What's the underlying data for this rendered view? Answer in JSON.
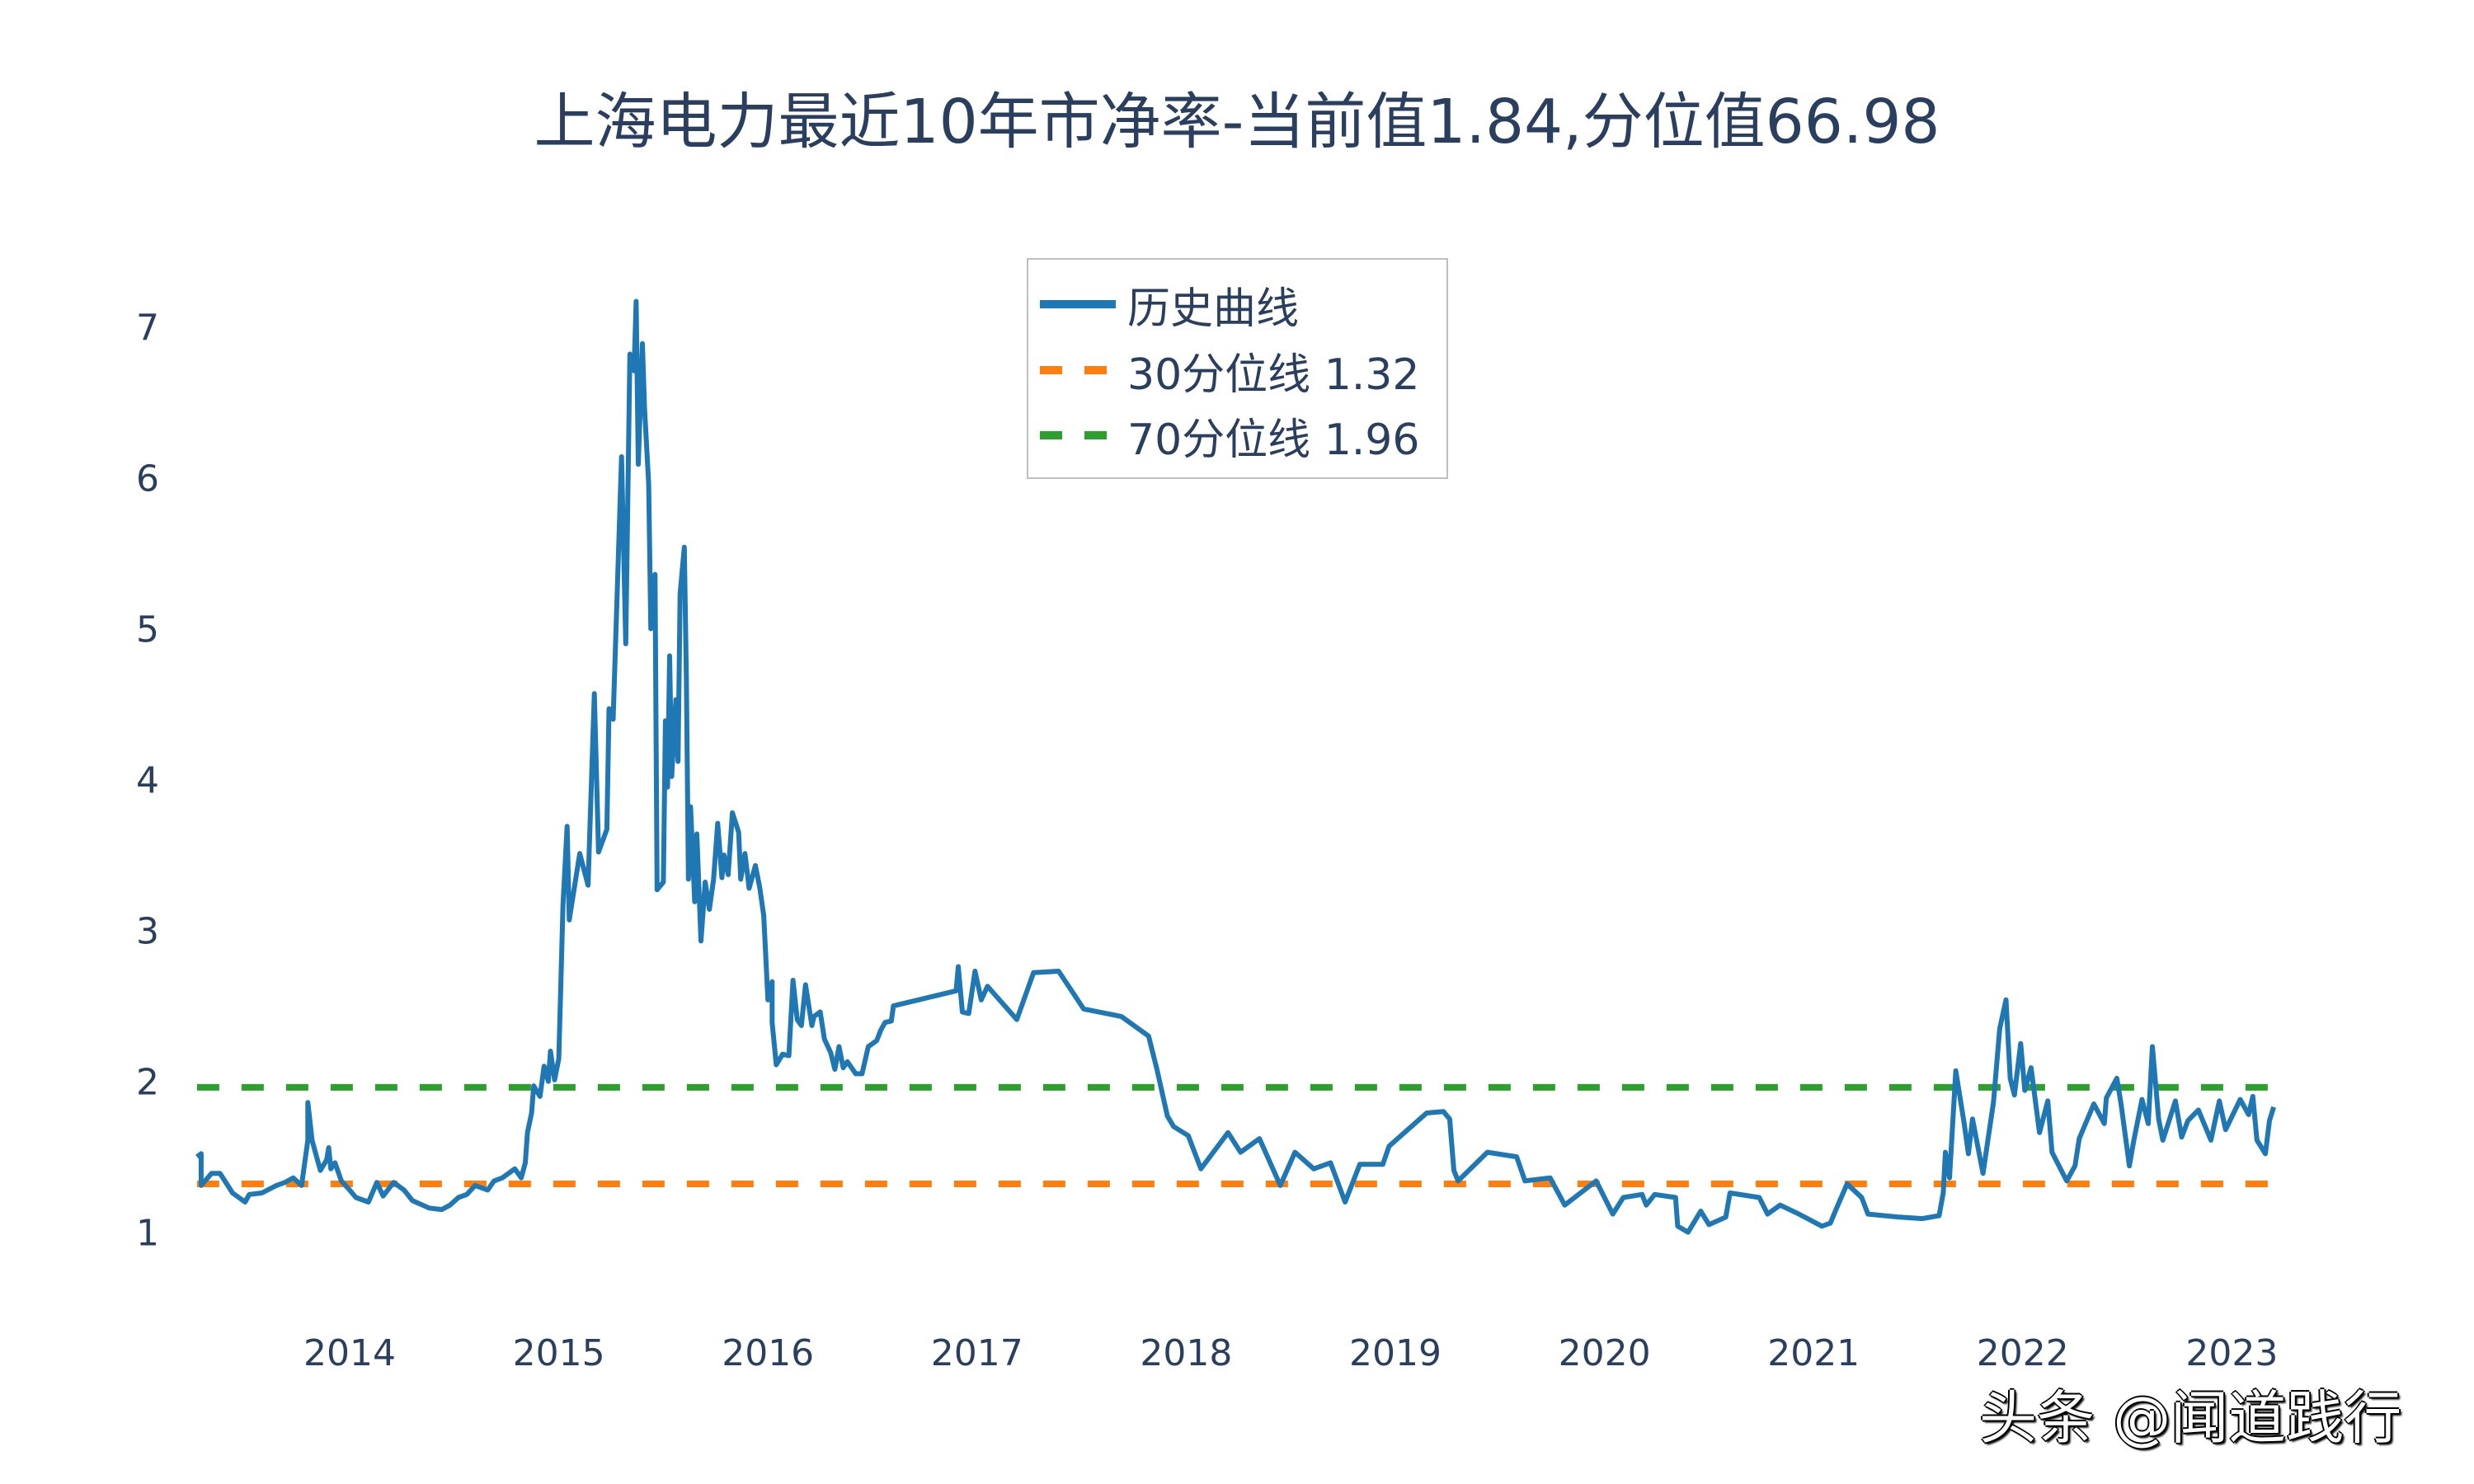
{
  "title": "上海电力最近10年市净率-当前值1.84,分位值66.98",
  "legend": {
    "items": [
      {
        "label": "历史曲线",
        "color": "#1f77b4",
        "dash": "solid"
      },
      {
        "label": "30分位线 1.32",
        "color": "#ff7f0e",
        "dash": "dash"
      },
      {
        "label": "70分位线 1.96",
        "color": "#2ca02c",
        "dash": "dash"
      }
    ]
  },
  "watermark": "头条 @闻道践行",
  "chart_data": {
    "type": "line",
    "title": "上海电力最近10年市净率-当前值1.84,分位值66.98",
    "xlabel": "",
    "ylabel": "",
    "x_ticks": [
      "2014",
      "2015",
      "2016",
      "2017",
      "2018",
      "2019",
      "2020",
      "2021",
      "2022",
      "2023"
    ],
    "y_ticks": [
      1,
      2,
      3,
      4,
      5,
      6,
      7
    ],
    "ylim": [
      0.7,
      7.3
    ],
    "xlim": [
      2013.27,
      2023.34
    ],
    "grid": false,
    "legend_position": "top-center (inside plot)",
    "current_value": 1.84,
    "percentile": 66.98,
    "reference_lines": [
      {
        "name": "30分位线",
        "value": 1.32,
        "color": "#ff7f0e",
        "style": "dash"
      },
      {
        "name": "70分位线",
        "value": 1.96,
        "color": "#2ca02c",
        "style": "dash"
      }
    ],
    "series": [
      {
        "name": "历史曲线",
        "color": "#1f77b4",
        "x_unit": "fractional year",
        "points": [
          [
            2013.27,
            1.5
          ],
          [
            2013.29,
            1.52
          ],
          [
            2013.29,
            1.31
          ],
          [
            2013.34,
            1.39
          ],
          [
            2013.38,
            1.39
          ],
          [
            2013.44,
            1.26
          ],
          [
            2013.47,
            1.23
          ],
          [
            2013.5,
            1.2
          ],
          [
            2013.52,
            1.25
          ],
          [
            2013.58,
            1.26
          ],
          [
            2013.65,
            1.31
          ],
          [
            2013.69,
            1.33
          ],
          [
            2013.73,
            1.36
          ],
          [
            2013.77,
            1.31
          ],
          [
            2013.8,
            1.61
          ],
          [
            2013.8,
            1.86
          ],
          [
            2013.82,
            1.61
          ],
          [
            2013.84,
            1.51
          ],
          [
            2013.86,
            1.41
          ],
          [
            2013.89,
            1.48
          ],
          [
            2013.9,
            1.56
          ],
          [
            2013.91,
            1.42
          ],
          [
            2013.93,
            1.46
          ],
          [
            2013.96,
            1.34
          ],
          [
            2014.0,
            1.28
          ],
          [
            2014.03,
            1.23
          ],
          [
            2014.09,
            1.2
          ],
          [
            2014.13,
            1.33
          ],
          [
            2014.16,
            1.24
          ],
          [
            2014.21,
            1.33
          ],
          [
            2014.26,
            1.28
          ],
          [
            2014.3,
            1.21
          ],
          [
            2014.38,
            1.16
          ],
          [
            2014.44,
            1.15
          ],
          [
            2014.48,
            1.18
          ],
          [
            2014.52,
            1.23
          ],
          [
            2014.56,
            1.25
          ],
          [
            2014.6,
            1.31
          ],
          [
            2014.66,
            1.28
          ],
          [
            2014.69,
            1.34
          ],
          [
            2014.73,
            1.36
          ],
          [
            2014.79,
            1.42
          ],
          [
            2014.82,
            1.36
          ],
          [
            2014.84,
            1.46
          ],
          [
            2014.85,
            1.66
          ],
          [
            2014.87,
            1.79
          ],
          [
            2014.88,
            1.97
          ],
          [
            2014.91,
            1.9
          ],
          [
            2014.93,
            2.1
          ],
          [
            2014.95,
            2.0
          ],
          [
            2014.96,
            2.2
          ],
          [
            2014.98,
            2.01
          ],
          [
            2015.0,
            2.15
          ],
          [
            2015.02,
            3.17
          ],
          [
            2015.04,
            3.69
          ],
          [
            2015.05,
            3.07
          ],
          [
            2015.1,
            3.51
          ],
          [
            2015.14,
            3.3
          ],
          [
            2015.17,
            4.57
          ],
          [
            2015.19,
            3.52
          ],
          [
            2015.23,
            3.67
          ],
          [
            2015.24,
            4.47
          ],
          [
            2015.26,
            4.4
          ],
          [
            2015.3,
            6.14
          ],
          [
            2015.32,
            4.9
          ],
          [
            2015.34,
            6.82
          ],
          [
            2015.36,
            6.71
          ],
          [
            2015.37,
            7.17
          ],
          [
            2015.38,
            6.09
          ],
          [
            2015.4,
            6.89
          ],
          [
            2015.41,
            6.46
          ],
          [
            2015.43,
            5.96
          ],
          [
            2015.44,
            5.0
          ],
          [
            2015.46,
            5.36
          ],
          [
            2015.47,
            3.27
          ],
          [
            2015.5,
            3.32
          ],
          [
            2015.51,
            4.39
          ],
          [
            2015.52,
            3.95
          ],
          [
            2015.53,
            4.82
          ],
          [
            2015.54,
            4.02
          ],
          [
            2015.56,
            4.53
          ],
          [
            2015.57,
            4.12
          ],
          [
            2015.58,
            5.23
          ],
          [
            2015.6,
            5.54
          ],
          [
            2015.61,
            4.67
          ],
          [
            2015.62,
            3.34
          ],
          [
            2015.63,
            3.82
          ],
          [
            2015.65,
            3.19
          ],
          [
            2015.66,
            3.64
          ],
          [
            2015.68,
            2.93
          ],
          [
            2015.7,
            3.32
          ],
          [
            2015.72,
            3.14
          ],
          [
            2015.74,
            3.34
          ],
          [
            2015.76,
            3.71
          ],
          [
            2015.78,
            3.35
          ],
          [
            2015.79,
            3.5
          ],
          [
            2015.81,
            3.37
          ],
          [
            2015.83,
            3.78
          ],
          [
            2015.86,
            3.65
          ],
          [
            2015.87,
            3.34
          ],
          [
            2015.89,
            3.51
          ],
          [
            2015.91,
            3.28
          ],
          [
            2015.94,
            3.43
          ],
          [
            2015.96,
            3.29
          ],
          [
            2015.98,
            3.1
          ],
          [
            2016.0,
            2.54
          ],
          [
            2016.02,
            2.66
          ],
          [
            2016.02,
            2.39
          ],
          [
            2016.04,
            2.11
          ],
          [
            2016.07,
            2.18
          ],
          [
            2016.1,
            2.17
          ],
          [
            2016.12,
            2.67
          ],
          [
            2016.14,
            2.41
          ],
          [
            2016.16,
            2.37
          ],
          [
            2016.18,
            2.64
          ],
          [
            2016.21,
            2.37
          ],
          [
            2016.22,
            2.43
          ],
          [
            2016.25,
            2.46
          ],
          [
            2016.27,
            2.28
          ],
          [
            2016.3,
            2.19
          ],
          [
            2016.32,
            2.08
          ],
          [
            2016.34,
            2.23
          ],
          [
            2016.36,
            2.09
          ],
          [
            2016.38,
            2.13
          ],
          [
            2016.42,
            2.05
          ],
          [
            2016.45,
            2.05
          ],
          [
            2016.48,
            2.23
          ],
          [
            2016.52,
            2.27
          ],
          [
            2016.54,
            2.34
          ],
          [
            2016.56,
            2.39
          ],
          [
            2016.59,
            2.4
          ],
          [
            2016.6,
            2.5
          ],
          [
            2016.9,
            2.6
          ],
          [
            2016.91,
            2.76
          ],
          [
            2016.93,
            2.46
          ],
          [
            2016.96,
            2.45
          ],
          [
            2016.99,
            2.73
          ],
          [
            2017.02,
            2.54
          ],
          [
            2017.05,
            2.63
          ],
          [
            2017.19,
            2.41
          ],
          [
            2017.27,
            2.72
          ],
          [
            2017.39,
            2.73
          ],
          [
            2017.51,
            2.48
          ],
          [
            2017.69,
            2.43
          ],
          [
            2017.82,
            2.3
          ],
          [
            2017.86,
            2.08
          ],
          [
            2017.91,
            1.77
          ],
          [
            2017.94,
            1.7
          ],
          [
            2018.01,
            1.64
          ],
          [
            2018.07,
            1.42
          ],
          [
            2018.2,
            1.66
          ],
          [
            2018.26,
            1.53
          ],
          [
            2018.35,
            1.62
          ],
          [
            2018.45,
            1.31
          ],
          [
            2018.52,
            1.53
          ],
          [
            2018.61,
            1.42
          ],
          [
            2018.69,
            1.46
          ],
          [
            2018.76,
            1.2
          ],
          [
            2018.83,
            1.45
          ],
          [
            2018.94,
            1.45
          ],
          [
            2018.97,
            1.57
          ],
          [
            2019.15,
            1.79
          ],
          [
            2019.23,
            1.8
          ],
          [
            2019.26,
            1.75
          ],
          [
            2019.28,
            1.41
          ],
          [
            2019.3,
            1.34
          ],
          [
            2019.44,
            1.53
          ],
          [
            2019.58,
            1.5
          ],
          [
            2019.62,
            1.34
          ],
          [
            2019.74,
            1.36
          ],
          [
            2019.81,
            1.18
          ],
          [
            2019.96,
            1.34
          ],
          [
            2020.04,
            1.12
          ],
          [
            2020.09,
            1.23
          ],
          [
            2020.18,
            1.25
          ],
          [
            2020.2,
            1.18
          ],
          [
            2020.24,
            1.25
          ],
          [
            2020.34,
            1.23
          ],
          [
            2020.35,
            1.04
          ],
          [
            2020.4,
            1.0
          ],
          [
            2020.46,
            1.14
          ],
          [
            2020.5,
            1.05
          ],
          [
            2020.58,
            1.1
          ],
          [
            2020.6,
            1.26
          ],
          [
            2020.74,
            1.23
          ],
          [
            2020.78,
            1.12
          ],
          [
            2020.84,
            1.18
          ],
          [
            2020.93,
            1.12
          ],
          [
            2021.04,
            1.04
          ],
          [
            2021.08,
            1.06
          ],
          [
            2021.11,
            1.16
          ],
          [
            2021.16,
            1.32
          ],
          [
            2021.23,
            1.23
          ],
          [
            2021.26,
            1.12
          ],
          [
            2021.41,
            1.1
          ],
          [
            2021.52,
            1.09
          ],
          [
            2021.6,
            1.11
          ],
          [
            2021.62,
            1.26
          ],
          [
            2021.63,
            1.53
          ],
          [
            2021.65,
            1.36
          ],
          [
            2021.68,
            2.07
          ],
          [
            2021.72,
            1.72
          ],
          [
            2021.74,
            1.52
          ],
          [
            2021.76,
            1.75
          ],
          [
            2021.81,
            1.39
          ],
          [
            2021.86,
            1.86
          ],
          [
            2021.89,
            2.35
          ],
          [
            2021.92,
            2.54
          ],
          [
            2021.94,
            2.02
          ],
          [
            2021.96,
            1.91
          ],
          [
            2021.99,
            2.25
          ],
          [
            2022.01,
            1.94
          ],
          [
            2022.04,
            2.09
          ],
          [
            2022.08,
            1.66
          ],
          [
            2022.12,
            1.87
          ],
          [
            2022.14,
            1.53
          ],
          [
            2022.21,
            1.34
          ],
          [
            2022.25,
            1.44
          ],
          [
            2022.27,
            1.62
          ],
          [
            2022.34,
            1.85
          ],
          [
            2022.39,
            1.72
          ],
          [
            2022.4,
            1.89
          ],
          [
            2022.45,
            2.02
          ],
          [
            2022.47,
            1.85
          ],
          [
            2022.51,
            1.44
          ],
          [
            2022.53,
            1.6
          ],
          [
            2022.57,
            1.88
          ],
          [
            2022.6,
            1.72
          ],
          [
            2022.62,
            2.23
          ],
          [
            2022.65,
            1.75
          ],
          [
            2022.67,
            1.61
          ],
          [
            2022.73,
            1.87
          ],
          [
            2022.76,
            1.63
          ],
          [
            2022.79,
            1.74
          ],
          [
            2022.84,
            1.81
          ],
          [
            2022.9,
            1.61
          ],
          [
            2022.94,
            1.87
          ],
          [
            2022.97,
            1.68
          ],
          [
            2023.04,
            1.88
          ],
          [
            2023.08,
            1.78
          ],
          [
            2023.1,
            1.9
          ],
          [
            2023.12,
            1.61
          ],
          [
            2023.16,
            1.52
          ],
          [
            2023.18,
            1.74
          ],
          [
            2023.2,
            1.83
          ]
        ]
      }
    ]
  }
}
